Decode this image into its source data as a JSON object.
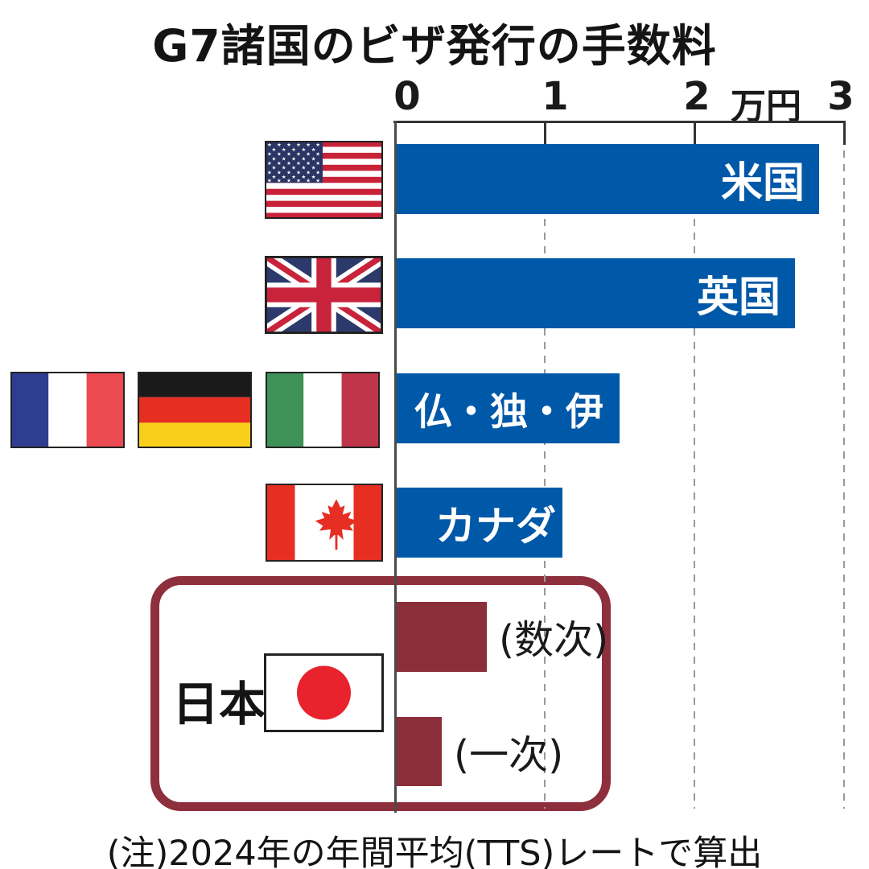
{
  "title": "G7諸国のビザ発行の手数料",
  "note": "(注)2024年の年間平均(TTS)レートで算出",
  "axis": {
    "ticks": [
      "0",
      "1",
      "2",
      "3"
    ],
    "unit_label": "万円",
    "max": 3
  },
  "rows": [
    {
      "label": "米国",
      "value": 2.82,
      "flags": [
        "united-states"
      ]
    },
    {
      "label": "英国",
      "value": 2.66,
      "flags": [
        "united-kingdom"
      ]
    },
    {
      "label": "仏・独・伊",
      "value": 1.49,
      "flags": [
        "france",
        "germany",
        "italy"
      ]
    },
    {
      "label": "カナダ",
      "value": 1.11,
      "flags": [
        "canada"
      ]
    }
  ],
  "japan": {
    "label": "日本",
    "flag": "japan",
    "rows": [
      {
        "label": "(数次)",
        "value": 0.6
      },
      {
        "label": "(一次)",
        "value": 0.3
      }
    ]
  },
  "colors": {
    "bar_blue": "#0058a8",
    "bar_maroon": "#8a2e3a",
    "japan_box_border": "#8e2f3d"
  },
  "chart_data": {
    "type": "bar",
    "orientation": "horizontal",
    "title": "G7諸国のビザ発行の手数料",
    "xlabel": "万円",
    "xlim": [
      0,
      3
    ],
    "x_ticks": [
      0,
      1,
      2,
      3
    ],
    "grid": "dashed vertical lines at 1, 2, 3",
    "categories": [
      "米国",
      "英国",
      "仏・独・伊",
      "カナダ",
      "日本(数次)",
      "日本(一次)"
    ],
    "values": [
      2.82,
      2.66,
      1.49,
      1.11,
      0.6,
      0.3
    ],
    "bar_colors": [
      "#0058a8",
      "#0058a8",
      "#0058a8",
      "#0058a8",
      "#8a2e3a",
      "#8a2e3a"
    ],
    "note": "(注)2024年の年間平均(TTS)レートで算出"
  }
}
